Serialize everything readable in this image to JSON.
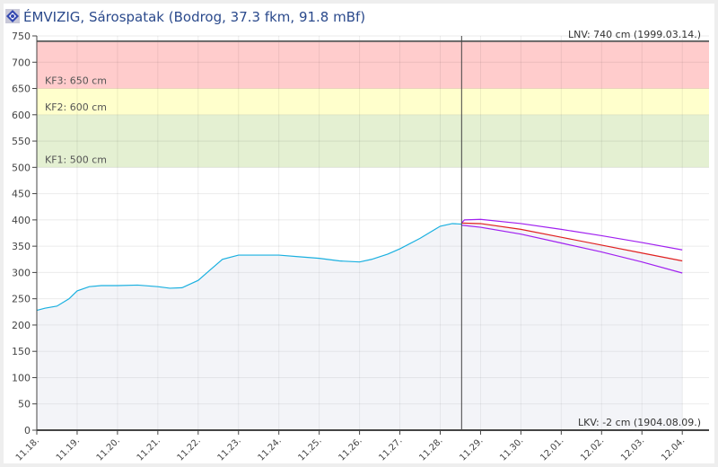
{
  "header": {
    "title": "ÉMVIZIG, Sárospatak (Bodrog, 37.3 fkm, 91.8 mBf)",
    "logo_icon": "emvizig-logo-icon"
  },
  "chart_data": {
    "type": "line",
    "ylim": [
      0,
      750
    ],
    "yticks": [
      0,
      50,
      100,
      150,
      200,
      250,
      300,
      350,
      400,
      450,
      500,
      550,
      600,
      650,
      700,
      750
    ],
    "xticks": [
      "11.18.",
      "11.19.",
      "11.20.",
      "11.21.",
      "11.22.",
      "11.23.",
      "11.24.",
      "11.25.",
      "11.26.",
      "11.27.",
      "11.28.",
      "11.29.",
      "11.30.",
      "12.01.",
      "12.02.",
      "12.03.",
      "12.04."
    ],
    "grid": true,
    "bands": [
      {
        "label": "KF1: 500 cm",
        "from": 500,
        "to": 600,
        "color": "#e4f0d2"
      },
      {
        "label": "KF2: 600 cm",
        "from": 600,
        "to": 650,
        "color": "#ffffcc"
      },
      {
        "label": "KF3: 650 cm",
        "from": 650,
        "to": 740,
        "color": "#ffcccc"
      }
    ],
    "annotations": {
      "lnv": "LNV: 740 cm (1999.03.14.)",
      "lnv_value": 740,
      "lkv": "LKV: -2 cm (1904.08.09.)"
    },
    "now_marker": "11.28. 12:40",
    "series": [
      {
        "id": "measured",
        "color": "#1ab0e0",
        "x": [
          0,
          0.2,
          0.5,
          0.8,
          1.0,
          1.3,
          1.6,
          2.0,
          2.5,
          3.0,
          3.3,
          3.6,
          4.0,
          4.3,
          4.6,
          5.0,
          5.5,
          6.0,
          6.5,
          7.0,
          7.5,
          8.0,
          8.3,
          8.7,
          9.0,
          9.5,
          10.0,
          10.3,
          10.53
        ],
        "y": [
          228,
          232,
          236,
          250,
          265,
          273,
          275,
          275,
          276,
          273,
          270,
          271,
          285,
          305,
          325,
          333,
          333,
          333,
          330,
          327,
          322,
          320,
          325,
          335,
          345,
          365,
          388,
          393,
          392
        ]
      },
      {
        "id": "forecast",
        "color": "#e02020",
        "x": [
          10.53,
          11,
          12,
          13,
          14,
          15,
          16
        ],
        "y": [
          394,
          393,
          382,
          367,
          352,
          337,
          322
        ]
      },
      {
        "id": "forecast-upper",
        "color": "#a020f0",
        "x": [
          10.53,
          10.6,
          11,
          12,
          13,
          14,
          15,
          16
        ],
        "y": [
          394,
          400,
          401,
          393,
          382,
          370,
          357,
          343
        ]
      },
      {
        "id": "forecast-lower",
        "color": "#a020f0",
        "x": [
          10.53,
          11,
          12,
          13,
          14,
          15,
          16
        ],
        "y": [
          390,
          386,
          373,
          356,
          339,
          320,
          299
        ]
      }
    ]
  }
}
